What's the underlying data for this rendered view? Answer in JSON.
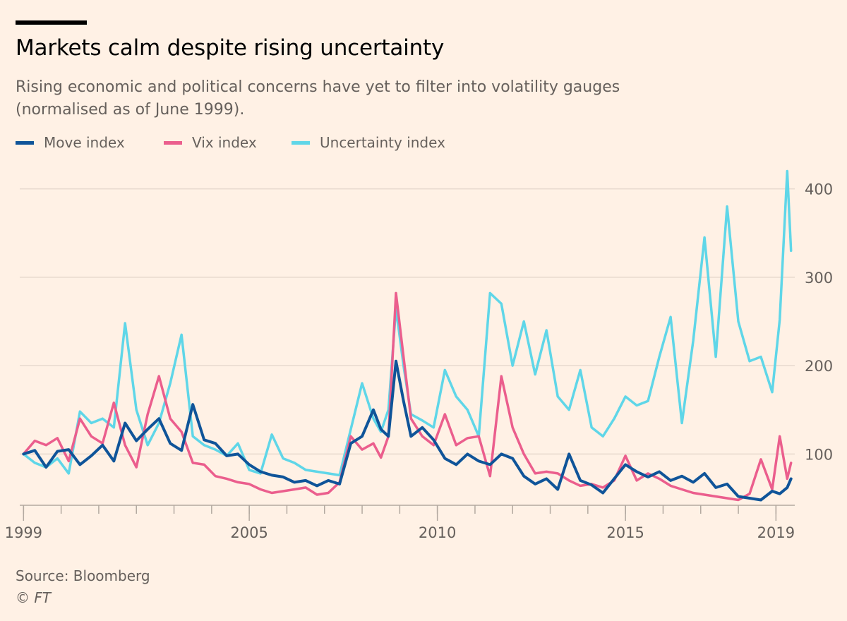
{
  "title": "Markets calm despite rising uncertainty",
  "subtitle": "Rising economic and political concerns have yet to filter into volatility gauges (normalised as of June 1999).",
  "source": "Source: Bloomberg",
  "credit": "© FT",
  "colors": {
    "background": "#fff1e5",
    "move": "#0f5499",
    "vix": "#eb5e8d",
    "uncertainty": "#5fd6e8",
    "grid": "#e6d9ce",
    "axis": "#66605c"
  },
  "chart_data": {
    "type": "line",
    "title": "Markets calm despite rising uncertainty",
    "xlabel": "",
    "ylabel": "",
    "x_tick_labels": [
      "1999",
      "2005",
      "2010",
      "2015",
      "2019"
    ],
    "x_ticks": [
      1999,
      2005,
      2010,
      2015,
      2019
    ],
    "xlim": [
      1998.9,
      2019.5
    ],
    "y_tick_labels": [
      "100",
      "200",
      "300",
      "400"
    ],
    "y_ticks": [
      100,
      200,
      300,
      400
    ],
    "ylim": [
      42,
      430
    ],
    "grid": "horizontal",
    "legend_position": "top-left",
    "series": [
      {
        "name": "Move index",
        "color": "#0f5499",
        "x": [
          1999.0,
          1999.3,
          1999.6,
          1999.9,
          2000.2,
          2000.5,
          2000.8,
          2001.1,
          2001.4,
          2001.7,
          2002.0,
          2002.3,
          2002.6,
          2002.9,
          2003.2,
          2003.5,
          2003.8,
          2004.1,
          2004.4,
          2004.7,
          2005.0,
          2005.3,
          2005.6,
          2005.9,
          2006.2,
          2006.5,
          2006.8,
          2007.1,
          2007.4,
          2007.7,
          2008.0,
          2008.3,
          2008.5,
          2008.7,
          2008.9,
          2009.1,
          2009.3,
          2009.6,
          2009.9,
          2010.2,
          2010.5,
          2010.8,
          2011.1,
          2011.4,
          2011.7,
          2012.0,
          2012.3,
          2012.6,
          2012.9,
          2013.2,
          2013.5,
          2013.8,
          2014.1,
          2014.4,
          2014.7,
          2015.0,
          2015.3,
          2015.6,
          2015.9,
          2016.2,
          2016.5,
          2016.8,
          2017.1,
          2017.4,
          2017.7,
          2018.0,
          2018.3,
          2018.6,
          2018.9,
          2019.1,
          2019.3,
          2019.4
        ],
        "values": [
          100,
          104,
          85,
          103,
          105,
          88,
          98,
          110,
          92,
          135,
          115,
          128,
          140,
          112,
          104,
          156,
          116,
          112,
          98,
          100,
          88,
          80,
          76,
          74,
          68,
          70,
          64,
          70,
          66,
          112,
          120,
          150,
          128,
          120,
          205,
          160,
          120,
          130,
          116,
          95,
          88,
          100,
          92,
          88,
          100,
          95,
          75,
          66,
          72,
          60,
          100,
          70,
          65,
          56,
          72,
          88,
          80,
          74,
          80,
          70,
          75,
          68,
          78,
          62,
          66,
          52,
          50,
          48,
          58,
          55,
          62,
          72
        ]
      },
      {
        "name": "Vix index",
        "color": "#eb5e8d",
        "x": [
          1999.0,
          1999.3,
          1999.6,
          1999.9,
          2000.2,
          2000.5,
          2000.8,
          2001.1,
          2001.4,
          2001.7,
          2002.0,
          2002.3,
          2002.6,
          2002.9,
          2003.2,
          2003.5,
          2003.8,
          2004.1,
          2004.4,
          2004.7,
          2005.0,
          2005.3,
          2005.6,
          2005.9,
          2006.2,
          2006.5,
          2006.8,
          2007.1,
          2007.4,
          2007.7,
          2008.0,
          2008.3,
          2008.5,
          2008.7,
          2008.9,
          2009.1,
          2009.3,
          2009.6,
          2009.9,
          2010.2,
          2010.5,
          2010.8,
          2011.1,
          2011.4,
          2011.7,
          2012.0,
          2012.3,
          2012.6,
          2012.9,
          2013.2,
          2013.5,
          2013.8,
          2014.1,
          2014.4,
          2014.7,
          2015.0,
          2015.3,
          2015.6,
          2015.9,
          2016.2,
          2016.5,
          2016.8,
          2017.1,
          2017.4,
          2017.7,
          2018.0,
          2018.3,
          2018.6,
          2018.9,
          2019.1,
          2019.3,
          2019.4
        ],
        "values": [
          100,
          115,
          110,
          118,
          92,
          140,
          120,
          112,
          158,
          110,
          85,
          145,
          188,
          140,
          125,
          90,
          88,
          75,
          72,
          68,
          66,
          60,
          56,
          58,
          60,
          62,
          54,
          56,
          68,
          120,
          105,
          112,
          96,
          120,
          282,
          210,
          140,
          120,
          110,
          145,
          110,
          118,
          120,
          75,
          188,
          130,
          100,
          78,
          80,
          78,
          70,
          64,
          66,
          62,
          70,
          98,
          70,
          78,
          72,
          64,
          60,
          56,
          54,
          52,
          50,
          48,
          55,
          94,
          60,
          120,
          72,
          90
        ]
      },
      {
        "name": "Uncertainty index",
        "color": "#5fd6e8",
        "x": [
          1999.0,
          1999.3,
          1999.6,
          1999.9,
          2000.2,
          2000.5,
          2000.8,
          2001.1,
          2001.4,
          2001.7,
          2002.0,
          2002.3,
          2002.6,
          2002.9,
          2003.2,
          2003.5,
          2003.8,
          2004.1,
          2004.4,
          2004.7,
          2005.0,
          2005.3,
          2005.6,
          2005.9,
          2006.2,
          2006.5,
          2006.8,
          2007.1,
          2007.4,
          2007.7,
          2008.0,
          2008.3,
          2008.5,
          2008.7,
          2008.9,
          2009.1,
          2009.3,
          2009.6,
          2009.9,
          2010.2,
          2010.5,
          2010.8,
          2011.1,
          2011.4,
          2011.7,
          2012.0,
          2012.3,
          2012.6,
          2012.9,
          2013.2,
          2013.5,
          2013.8,
          2014.1,
          2014.4,
          2014.7,
          2015.0,
          2015.3,
          2015.6,
          2015.9,
          2016.2,
          2016.5,
          2016.8,
          2017.1,
          2017.4,
          2017.7,
          2018.0,
          2018.3,
          2018.6,
          2018.9,
          2019.1,
          2019.3,
          2019.4
        ],
        "values": [
          100,
          90,
          85,
          95,
          78,
          148,
          135,
          140,
          130,
          248,
          150,
          110,
          135,
          180,
          235,
          120,
          110,
          105,
          98,
          112,
          82,
          78,
          122,
          95,
          90,
          82,
          80,
          78,
          76,
          128,
          180,
          140,
          125,
          150,
          265,
          200,
          145,
          138,
          130,
          195,
          165,
          150,
          120,
          282,
          270,
          200,
          250,
          190,
          240,
          165,
          150,
          195,
          130,
          120,
          140,
          165,
          155,
          160,
          210,
          255,
          135,
          228,
          345,
          210,
          380,
          250,
          205,
          210,
          170,
          252,
          420,
          330
        ]
      }
    ]
  }
}
